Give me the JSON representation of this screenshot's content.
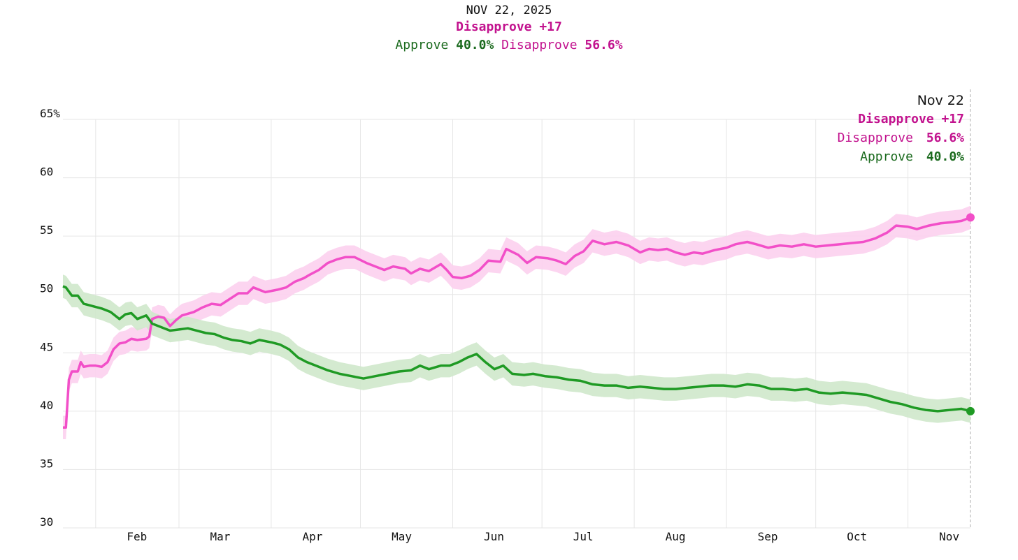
{
  "header": {
    "date": "NOV 22, 2025",
    "net_label": "Disapprove +17",
    "approve_label": "Approve",
    "approve_value": "40.0%",
    "disapprove_label": "Disapprove",
    "disapprove_value": "56.6%"
  },
  "annotation": {
    "date": "Nov 22",
    "net_label": "Disapprove +17",
    "disapprove_label": "Disapprove",
    "disapprove_value": "56.6%",
    "approve_label": "Approve",
    "approve_value": "40.0%"
  },
  "colors": {
    "approve_line": "#1f9a24",
    "approve_band": "#cfe8cb",
    "approve_text": "#1c6b1f",
    "disapprove_line": "#f24fc8",
    "disapprove_band": "#fcd0ee",
    "disapprove_text": "#c2128e",
    "grid": "#e6e6e6"
  },
  "chart_data": {
    "type": "line",
    "ylim": [
      30,
      65
    ],
    "y_ticks": [
      {
        "value": 65,
        "label": "65%"
      },
      {
        "value": 60,
        "label": "60"
      },
      {
        "value": 55,
        "label": "55"
      },
      {
        "value": 50,
        "label": "50"
      },
      {
        "value": 45,
        "label": "45"
      },
      {
        "value": 40,
        "label": "40"
      },
      {
        "value": 35,
        "label": "35"
      },
      {
        "value": 30,
        "label": "30"
      }
    ],
    "x_domain": [
      "2025-01-21",
      "2025-11-22"
    ],
    "x_ticks": [
      {
        "date": "2025-02-01",
        "label": "Feb"
      },
      {
        "date": "2025-03-01",
        "label": "Mar"
      },
      {
        "date": "2025-04-01",
        "label": "Apr"
      },
      {
        "date": "2025-05-01",
        "label": "May"
      },
      {
        "date": "2025-06-01",
        "label": "Jun"
      },
      {
        "date": "2025-07-01",
        "label": "Jul"
      },
      {
        "date": "2025-08-01",
        "label": "Aug"
      },
      {
        "date": "2025-09-01",
        "label": "Sep"
      },
      {
        "date": "2025-10-01",
        "label": "Oct"
      },
      {
        "date": "2025-11-01",
        "label": "Nov"
      }
    ],
    "series": [
      {
        "name": "Disapprove",
        "band": 1.0,
        "points": [
          [
            "2025-01-21",
            38.6
          ],
          [
            "2025-01-22",
            38.6
          ],
          [
            "2025-01-23",
            42.7
          ],
          [
            "2025-01-24",
            43.4
          ],
          [
            "2025-01-26",
            43.4
          ],
          [
            "2025-01-27",
            44.2
          ],
          [
            "2025-01-28",
            43.8
          ],
          [
            "2025-01-30",
            43.9
          ],
          [
            "2025-02-01",
            43.9
          ],
          [
            "2025-02-03",
            43.8
          ],
          [
            "2025-02-05",
            44.2
          ],
          [
            "2025-02-07",
            45.3
          ],
          [
            "2025-02-09",
            45.8
          ],
          [
            "2025-02-11",
            45.9
          ],
          [
            "2025-02-13",
            46.2
          ],
          [
            "2025-02-15",
            46.1
          ],
          [
            "2025-02-18",
            46.2
          ],
          [
            "2025-02-19",
            46.4
          ],
          [
            "2025-02-20",
            47.9
          ],
          [
            "2025-02-22",
            48.1
          ],
          [
            "2025-02-24",
            48.0
          ],
          [
            "2025-02-26",
            47.3
          ],
          [
            "2025-02-28",
            47.8
          ],
          [
            "2025-03-02",
            48.2
          ],
          [
            "2025-03-06",
            48.5
          ],
          [
            "2025-03-09",
            48.9
          ],
          [
            "2025-03-12",
            49.2
          ],
          [
            "2025-03-15",
            49.1
          ],
          [
            "2025-03-18",
            49.6
          ],
          [
            "2025-03-21",
            50.1
          ],
          [
            "2025-03-24",
            50.1
          ],
          [
            "2025-03-26",
            50.6
          ],
          [
            "2025-03-30",
            50.2
          ],
          [
            "2025-04-03",
            50.4
          ],
          [
            "2025-04-06",
            50.6
          ],
          [
            "2025-04-09",
            51.1
          ],
          [
            "2025-04-12",
            51.4
          ],
          [
            "2025-04-14",
            51.7
          ],
          [
            "2025-04-17",
            52.1
          ],
          [
            "2025-04-20",
            52.7
          ],
          [
            "2025-04-23",
            53.0
          ],
          [
            "2025-04-26",
            53.2
          ],
          [
            "2025-04-29",
            53.2
          ],
          [
            "2025-05-03",
            52.7
          ],
          [
            "2025-05-06",
            52.4
          ],
          [
            "2025-05-09",
            52.1
          ],
          [
            "2025-05-12",
            52.4
          ],
          [
            "2025-05-16",
            52.2
          ],
          [
            "2025-05-18",
            51.8
          ],
          [
            "2025-05-21",
            52.2
          ],
          [
            "2025-05-24",
            52.0
          ],
          [
            "2025-05-28",
            52.6
          ],
          [
            "2025-05-30",
            52.1
          ],
          [
            "2025-06-01",
            51.5
          ],
          [
            "2025-06-04",
            51.4
          ],
          [
            "2025-06-07",
            51.6
          ],
          [
            "2025-06-10",
            52.1
          ],
          [
            "2025-06-13",
            52.9
          ],
          [
            "2025-06-17",
            52.8
          ],
          [
            "2025-06-19",
            53.9
          ],
          [
            "2025-06-23",
            53.4
          ],
          [
            "2025-06-26",
            52.7
          ],
          [
            "2025-06-29",
            53.2
          ],
          [
            "2025-07-03",
            53.1
          ],
          [
            "2025-07-06",
            52.9
          ],
          [
            "2025-07-09",
            52.6
          ],
          [
            "2025-07-12",
            53.3
          ],
          [
            "2025-07-15",
            53.7
          ],
          [
            "2025-07-18",
            54.6
          ],
          [
            "2025-07-22",
            54.3
          ],
          [
            "2025-07-26",
            54.5
          ],
          [
            "2025-07-30",
            54.2
          ],
          [
            "2025-08-03",
            53.6
          ],
          [
            "2025-08-06",
            53.9
          ],
          [
            "2025-08-09",
            53.8
          ],
          [
            "2025-08-12",
            53.9
          ],
          [
            "2025-08-15",
            53.6
          ],
          [
            "2025-08-18",
            53.4
          ],
          [
            "2025-08-21",
            53.6
          ],
          [
            "2025-08-24",
            53.5
          ],
          [
            "2025-08-28",
            53.8
          ],
          [
            "2025-09-01",
            54.0
          ],
          [
            "2025-09-04",
            54.3
          ],
          [
            "2025-09-08",
            54.5
          ],
          [
            "2025-09-11",
            54.3
          ],
          [
            "2025-09-15",
            54.0
          ],
          [
            "2025-09-19",
            54.2
          ],
          [
            "2025-09-23",
            54.1
          ],
          [
            "2025-09-27",
            54.3
          ],
          [
            "2025-10-01",
            54.1
          ],
          [
            "2025-10-05",
            54.2
          ],
          [
            "2025-10-09",
            54.3
          ],
          [
            "2025-10-13",
            54.4
          ],
          [
            "2025-10-17",
            54.5
          ],
          [
            "2025-10-21",
            54.8
          ],
          [
            "2025-10-25",
            55.3
          ],
          [
            "2025-10-28",
            55.9
          ],
          [
            "2025-11-01",
            55.8
          ],
          [
            "2025-11-04",
            55.6
          ],
          [
            "2025-11-08",
            55.9
          ],
          [
            "2025-11-12",
            56.1
          ],
          [
            "2025-11-16",
            56.2
          ],
          [
            "2025-11-19",
            56.3
          ],
          [
            "2025-11-22",
            56.6
          ]
        ]
      },
      {
        "name": "Approve",
        "band": 1.0,
        "points": [
          [
            "2025-01-21",
            50.7
          ],
          [
            "2025-01-22",
            50.6
          ],
          [
            "2025-01-24",
            49.9
          ],
          [
            "2025-01-26",
            49.9
          ],
          [
            "2025-01-28",
            49.2
          ],
          [
            "2025-01-31",
            49.0
          ],
          [
            "2025-02-03",
            48.8
          ],
          [
            "2025-02-06",
            48.5
          ],
          [
            "2025-02-09",
            47.9
          ],
          [
            "2025-02-11",
            48.3
          ],
          [
            "2025-02-13",
            48.4
          ],
          [
            "2025-02-15",
            47.9
          ],
          [
            "2025-02-18",
            48.2
          ],
          [
            "2025-02-20",
            47.5
          ],
          [
            "2025-02-23",
            47.2
          ],
          [
            "2025-02-26",
            46.9
          ],
          [
            "2025-03-01",
            47.0
          ],
          [
            "2025-03-04",
            47.1
          ],
          [
            "2025-03-07",
            46.9
          ],
          [
            "2025-03-10",
            46.7
          ],
          [
            "2025-03-13",
            46.6
          ],
          [
            "2025-03-16",
            46.3
          ],
          [
            "2025-03-19",
            46.1
          ],
          [
            "2025-03-22",
            46.0
          ],
          [
            "2025-03-25",
            45.8
          ],
          [
            "2025-03-28",
            46.1
          ],
          [
            "2025-04-01",
            45.9
          ],
          [
            "2025-04-04",
            45.7
          ],
          [
            "2025-04-07",
            45.3
          ],
          [
            "2025-04-10",
            44.6
          ],
          [
            "2025-04-13",
            44.2
          ],
          [
            "2025-04-16",
            43.9
          ],
          [
            "2025-04-20",
            43.5
          ],
          [
            "2025-04-24",
            43.2
          ],
          [
            "2025-04-28",
            43.0
          ],
          [
            "2025-05-02",
            42.8
          ],
          [
            "2025-05-06",
            43.0
          ],
          [
            "2025-05-10",
            43.2
          ],
          [
            "2025-05-14",
            43.4
          ],
          [
            "2025-05-18",
            43.5
          ],
          [
            "2025-05-21",
            43.9
          ],
          [
            "2025-05-24",
            43.6
          ],
          [
            "2025-05-28",
            43.9
          ],
          [
            "2025-05-31",
            43.9
          ],
          [
            "2025-06-03",
            44.2
          ],
          [
            "2025-06-06",
            44.6
          ],
          [
            "2025-06-09",
            44.9
          ],
          [
            "2025-06-12",
            44.2
          ],
          [
            "2025-06-15",
            43.6
          ],
          [
            "2025-06-18",
            43.9
          ],
          [
            "2025-06-21",
            43.2
          ],
          [
            "2025-06-25",
            43.1
          ],
          [
            "2025-06-28",
            43.2
          ],
          [
            "2025-07-02",
            43.0
          ],
          [
            "2025-07-06",
            42.9
          ],
          [
            "2025-07-10",
            42.7
          ],
          [
            "2025-07-14",
            42.6
          ],
          [
            "2025-07-18",
            42.3
          ],
          [
            "2025-07-22",
            42.2
          ],
          [
            "2025-07-26",
            42.2
          ],
          [
            "2025-07-30",
            42.0
          ],
          [
            "2025-08-03",
            42.1
          ],
          [
            "2025-08-07",
            42.0
          ],
          [
            "2025-08-11",
            41.9
          ],
          [
            "2025-08-15",
            41.9
          ],
          [
            "2025-08-19",
            42.0
          ],
          [
            "2025-08-23",
            42.1
          ],
          [
            "2025-08-27",
            42.2
          ],
          [
            "2025-08-31",
            42.2
          ],
          [
            "2025-09-04",
            42.1
          ],
          [
            "2025-09-08",
            42.3
          ],
          [
            "2025-09-12",
            42.2
          ],
          [
            "2025-09-16",
            41.9
          ],
          [
            "2025-09-20",
            41.9
          ],
          [
            "2025-09-24",
            41.8
          ],
          [
            "2025-09-28",
            41.9
          ],
          [
            "2025-10-02",
            41.6
          ],
          [
            "2025-10-06",
            41.5
          ],
          [
            "2025-10-10",
            41.6
          ],
          [
            "2025-10-14",
            41.5
          ],
          [
            "2025-10-18",
            41.4
          ],
          [
            "2025-10-22",
            41.1
          ],
          [
            "2025-10-26",
            40.8
          ],
          [
            "2025-10-30",
            40.6
          ],
          [
            "2025-11-03",
            40.3
          ],
          [
            "2025-11-07",
            40.1
          ],
          [
            "2025-11-11",
            40.0
          ],
          [
            "2025-11-15",
            40.1
          ],
          [
            "2025-11-19",
            40.2
          ],
          [
            "2025-11-22",
            40.0
          ]
        ]
      }
    ]
  }
}
